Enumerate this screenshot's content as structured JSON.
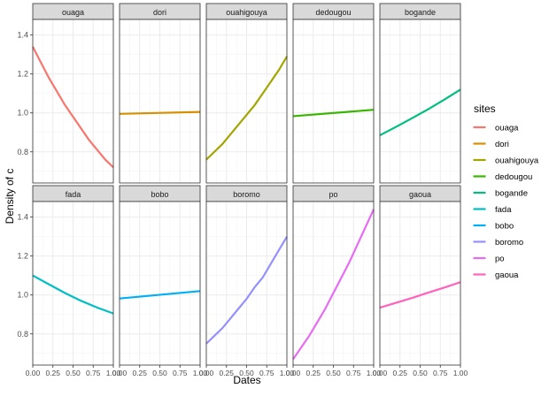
{
  "chart_data": {
    "type": "line",
    "facet_wrap": true,
    "facet_rows": 2,
    "facet_cols": 5,
    "xlabel": "Dates",
    "ylabel": "Density of c",
    "xlim": [
      0,
      1
    ],
    "ylim": [
      0.64,
      1.48
    ],
    "x_ticks": [
      0.0,
      0.25,
      0.5,
      0.75,
      1.0
    ],
    "x_tick_labels": [
      "0.00",
      "0.25",
      "0.50",
      "0.75",
      "1.00"
    ],
    "y_ticks": [
      0.8,
      1.0,
      1.2,
      1.4
    ],
    "y_tick_labels": [
      "0.8",
      "1.0",
      "1.2",
      "1.4"
    ],
    "grid": true,
    "legend": {
      "title": "sites",
      "position": "right"
    },
    "series": [
      {
        "name": "ouaga",
        "color": "#F8766D",
        "x": [
          0,
          0.1,
          0.2,
          0.3,
          0.4,
          0.5,
          0.6,
          0.7,
          0.8,
          0.9,
          1.0
        ],
        "y": [
          1.34,
          1.26,
          1.18,
          1.11,
          1.04,
          0.98,
          0.92,
          0.86,
          0.81,
          0.76,
          0.72
        ]
      },
      {
        "name": "dori",
        "color": "#D89000",
        "x": [
          0,
          1.0
        ],
        "y": [
          0.995,
          1.005
        ]
      },
      {
        "name": "ouahigouya",
        "color": "#A3A500",
        "x": [
          0,
          0.1,
          0.2,
          0.3,
          0.4,
          0.5,
          0.6,
          0.7,
          0.8,
          0.9,
          1.0
        ],
        "y": [
          0.76,
          0.8,
          0.84,
          0.89,
          0.94,
          0.99,
          1.04,
          1.1,
          1.16,
          1.22,
          1.29
        ]
      },
      {
        "name": "dedougou",
        "color": "#39B600",
        "x": [
          0,
          1.0
        ],
        "y": [
          0.983,
          1.016
        ]
      },
      {
        "name": "bogande",
        "color": "#00BF7D",
        "x": [
          0,
          0.2,
          0.4,
          0.6,
          0.8,
          1.0
        ],
        "y": [
          0.885,
          0.928,
          0.973,
          1.019,
          1.068,
          1.12
        ]
      },
      {
        "name": "fada",
        "color": "#00BFC4",
        "x": [
          0,
          0.2,
          0.4,
          0.6,
          0.8,
          1.0
        ],
        "y": [
          1.1,
          1.055,
          1.01,
          0.97,
          0.935,
          0.905
        ]
      },
      {
        "name": "bobo",
        "color": "#00B0F6",
        "x": [
          0,
          1.0
        ],
        "y": [
          0.982,
          1.02
        ]
      },
      {
        "name": "boromo",
        "color": "#9590FF",
        "x": [
          0,
          0.1,
          0.2,
          0.3,
          0.4,
          0.5,
          0.6,
          0.7,
          0.8,
          0.9,
          1.0
        ],
        "y": [
          0.75,
          0.79,
          0.83,
          0.88,
          0.93,
          0.98,
          1.04,
          1.09,
          1.16,
          1.23,
          1.3
        ]
      },
      {
        "name": "po",
        "color": "#E76BF3",
        "x": [
          0,
          0.1,
          0.2,
          0.3,
          0.4,
          0.5,
          0.6,
          0.7,
          0.8,
          0.9,
          1.0
        ],
        "y": [
          0.67,
          0.73,
          0.79,
          0.86,
          0.93,
          1.01,
          1.09,
          1.17,
          1.26,
          1.35,
          1.44
        ]
      },
      {
        "name": "gaoua",
        "color": "#FF62BC",
        "x": [
          0,
          0.2,
          0.4,
          0.6,
          0.8,
          1.0
        ],
        "y": [
          0.935,
          0.96,
          0.985,
          1.012,
          1.038,
          1.066
        ]
      }
    ]
  }
}
